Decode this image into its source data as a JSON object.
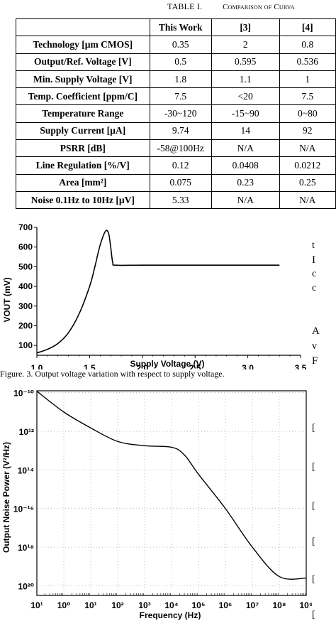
{
  "table": {
    "caption_prefix": "TABLE I.",
    "caption_text": "Comparison of Curva",
    "headers": [
      "",
      "This Work",
      "[3]",
      "[4]"
    ],
    "rows": [
      [
        "Technology [µm CMOS]",
        "0.35",
        "2",
        "0.8"
      ],
      [
        "Output/Ref. Voltage [V]",
        "0.5",
        "0.595",
        "0.536"
      ],
      [
        "Min. Supply Voltage [V]",
        "1.8",
        "1.1",
        "1"
      ],
      [
        "Temp. Coefficient [ppm/C]",
        "7.5",
        "<20",
        "7.5"
      ],
      [
        "Temperature Range",
        "-30~120",
        "-15~90",
        "0~80"
      ],
      [
        "Supply Current [µA]",
        "9.74",
        "14",
        "92"
      ],
      [
        "PSRR [dB]",
        "-58@100Hz",
        "N/A",
        "N/A"
      ],
      [
        "Line Regulation [%/V]",
        "0.12",
        "0.0408",
        "0.0212"
      ],
      [
        "Area [mm²]",
        "0.075",
        "0.23",
        "0.25"
      ],
      [
        "Noise 0.1Hz to 10Hz [µV]",
        "5.33",
        "N/A",
        "N/A"
      ]
    ]
  },
  "side_text": {
    "lines_top": [
      "t",
      "I",
      "c",
      "c"
    ],
    "lines_mid": [
      "A",
      "v",
      "F"
    ],
    "refs": [
      "[",
      "[",
      "[",
      "[",
      "[",
      "["
    ]
  },
  "figure3": {
    "caption": "Figure. 3.   Output voltage variation with respect to supply voltage."
  },
  "chart_data": [
    {
      "type": "line",
      "title": "",
      "xlabel": "Supply Voltage (V)",
      "ylabel": "VOUT (mV)",
      "xlim": [
        1.0,
        3.5
      ],
      "ylim": [
        50,
        700
      ],
      "xticks": [
        "1.0",
        "1.5",
        "2.0",
        "2.5",
        "3.0",
        "3.5"
      ],
      "yticks": [
        "100",
        "200",
        "300",
        "400",
        "500",
        "600",
        "700"
      ],
      "series": [
        {
          "x": [
            1.0,
            1.1,
            1.2,
            1.3,
            1.4,
            1.5,
            1.55,
            1.6,
            1.65,
            1.68,
            1.7,
            1.72,
            1.75,
            2.0,
            2.5,
            3.0,
            3.3
          ],
          "y": [
            62,
            80,
            110,
            165,
            260,
            400,
            500,
            610,
            680,
            670,
            600,
            520,
            508,
            508,
            508,
            508,
            508
          ]
        }
      ]
    },
    {
      "type": "line",
      "title": "",
      "xlabel": "Frequency (Hz)",
      "ylabel": "Output Noise Power (V²/Hz)",
      "x_scale": "log",
      "y_scale": "log",
      "xticks": [
        "10¹",
        "10⁰",
        "10¹",
        "10²",
        "10³",
        "10⁴",
        "10⁵",
        "10⁶",
        "10⁷",
        "10⁸",
        "10⁹"
      ],
      "yticks": [
        "10⁻¹⁰",
        "10¹²",
        "10¹⁴",
        "10⁻¹⁶",
        "10¹⁸",
        "10²⁰"
      ],
      "series": [
        {
          "x": [
            0.1,
            1,
            10,
            100,
            1000,
            10000,
            30000,
            100000,
            1000000,
            10000000,
            100000000,
            1000000000
          ],
          "y": [
            1.2e-10,
            1e-11,
            1.5e-12,
            3e-13,
            1.8e-13,
            1.5e-13,
            6e-14,
            6e-15,
            1e-16,
            1e-18,
            3e-20,
            2.5e-20
          ]
        }
      ]
    }
  ]
}
